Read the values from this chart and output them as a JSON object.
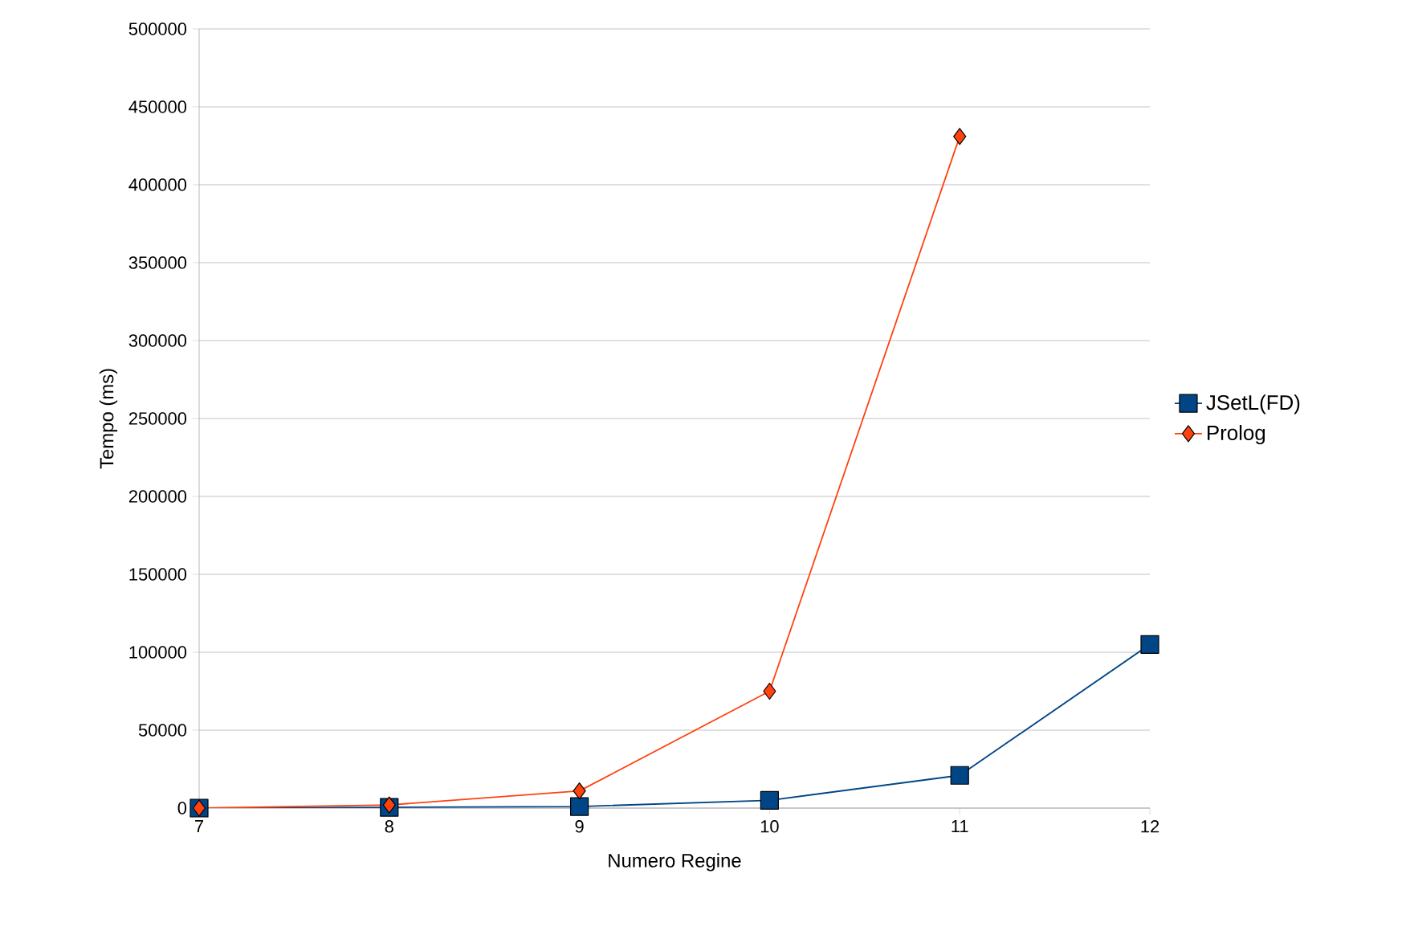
{
  "chart_data": {
    "type": "line",
    "xlabel": "Numero Regine",
    "ylabel": "Tempo (ms)",
    "x": [
      7,
      8,
      9,
      10,
      11,
      12
    ],
    "series": [
      {
        "name": "JSetL(FD)",
        "color": "#004586",
        "marker": "square",
        "values": [
          0,
          500,
          1000,
          5000,
          21000,
          105000
        ]
      },
      {
        "name": "Prolog",
        "color": "#ff420e",
        "marker": "diamond",
        "values": [
          0,
          2000,
          11000,
          75000,
          431000,
          null
        ]
      }
    ],
    "xlim": [
      7,
      12
    ],
    "xticks": [
      7,
      8,
      9,
      10,
      11,
      12
    ],
    "ylim": [
      0,
      500000
    ],
    "yticks": [
      0,
      50000,
      100000,
      150000,
      200000,
      250000,
      300000,
      350000,
      400000,
      450000,
      500000
    ],
    "grid": "y",
    "legend": "right"
  }
}
